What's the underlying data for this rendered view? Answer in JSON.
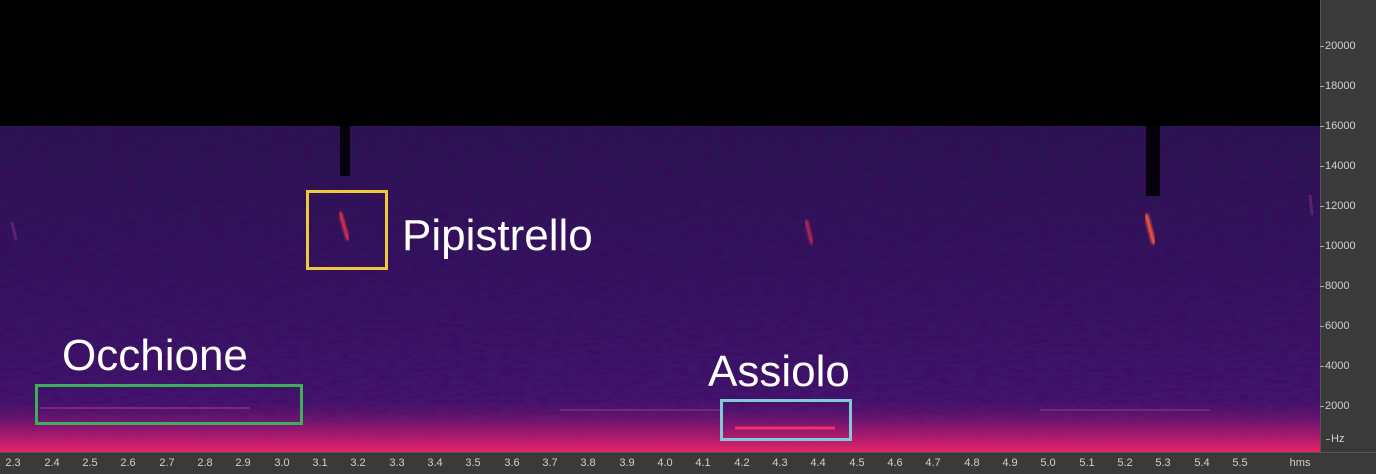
{
  "spectrogram": {
    "frequency_axis": {
      "unit": "Hz",
      "ticks": [
        "20000",
        "18000",
        "16000",
        "14000",
        "12000",
        "10000",
        "8000",
        "6000",
        "4000",
        "2000"
      ],
      "max_hz": 22100
    },
    "time_axis": {
      "unit": "hms",
      "ticks": [
        "2.3",
        "2.4",
        "2.5",
        "2.6",
        "2.7",
        "2.8",
        "2.9",
        "3.0",
        "3.1",
        "3.2",
        "3.3",
        "3.4",
        "3.5",
        "3.6",
        "3.7",
        "3.8",
        "3.9",
        "4.0",
        "4.1",
        "4.2",
        "4.3",
        "4.4",
        "4.5",
        "4.6",
        "4.7",
        "4.8",
        "4.9",
        "5.0",
        "5.1",
        "5.2",
        "5.3",
        "5.4",
        "5.5"
      ]
    },
    "colors": {
      "background": "#000000",
      "noise_floor": "#30105a",
      "low_band": "#e0206a",
      "pipistrello_box": "#f0c93a",
      "occhione_box": "#3fae5a",
      "assiolo_box": "#7fc9d9"
    },
    "annotations": [
      {
        "label": "Pipistrello",
        "box_color": "#f0c93a"
      },
      {
        "label": "Occhione",
        "box_color": "#3fae5a"
      },
      {
        "label": "Assiolo",
        "box_color": "#7fc9d9"
      }
    ]
  }
}
